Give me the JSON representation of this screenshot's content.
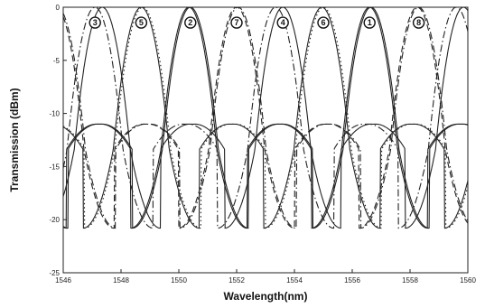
{
  "chart_data": {
    "type": "line",
    "xlabel": "Wavelength(nm)",
    "ylabel": "Transmission (dBm)",
    "xlim": [
      1546,
      1560
    ],
    "ylim": [
      -25,
      0
    ],
    "xticks": [
      "1546",
      "1548",
      "1550",
      "1552",
      "1554",
      "1556",
      "1558",
      "1560"
    ],
    "yticks": [
      "0",
      "-5",
      "-10",
      "-15",
      "-20",
      "-25"
    ],
    "grid": false,
    "channel_period_nm": 6.25,
    "peak_dBm": 0,
    "ripple_max_dBm": -11,
    "valley_dBm": -13.4,
    "null_dBm": -20.8,
    "series": [
      {
        "label": "1",
        "peak_nm": 1556.6,
        "style": "solid"
      },
      {
        "label": "2",
        "peak_nm": 1550.4,
        "style": "solid"
      },
      {
        "label": "3",
        "peak_nm": 1547.1,
        "style": "dashdot"
      },
      {
        "label": "4",
        "peak_nm": 1553.6,
        "style": "solid"
      },
      {
        "label": "5",
        "peak_nm": 1548.7,
        "style": "solid"
      },
      {
        "label": "6",
        "peak_nm": 1555.0,
        "style": "dotted"
      },
      {
        "label": "7",
        "peak_nm": 1552.0,
        "style": "dashed"
      },
      {
        "label": "8",
        "peak_nm": 1558.3,
        "style": "dashdot"
      }
    ],
    "annotations": [
      {
        "text": "3",
        "x": 1547.1,
        "y": -1.2
      },
      {
        "text": "5",
        "x": 1548.7,
        "y": -1.2
      },
      {
        "text": "2",
        "x": 1550.4,
        "y": -1.2
      },
      {
        "text": "7",
        "x": 1552.0,
        "y": -1.2
      },
      {
        "text": "4",
        "x": 1553.6,
        "y": -1.2
      },
      {
        "text": "6",
        "x": 1555.0,
        "y": -1.2
      },
      {
        "text": "1",
        "x": 1556.6,
        "y": -1.2
      },
      {
        "text": "8",
        "x": 1558.3,
        "y": -1.2
      }
    ]
  }
}
